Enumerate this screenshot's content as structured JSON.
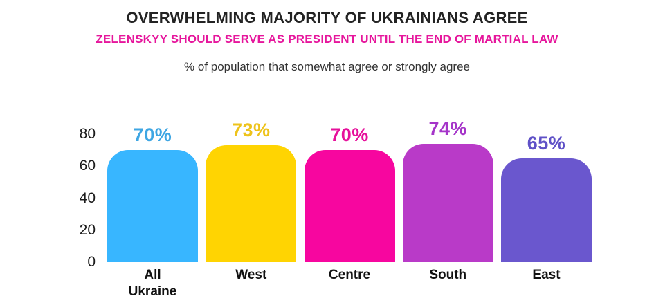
{
  "header": {
    "title": "OVERWHELMING MAJORITY OF UKRAINIANS AGREE",
    "subtitle": "ZELENSKYY SHOULD SERVE AS PRESIDENT UNTIL THE END OF MARTIAL LAW",
    "caption": "% of population that somewhat agree or strongly agree"
  },
  "colors": {
    "title_text": "#232323",
    "subtitle_text": "#E6169C",
    "caption_text": "#333333",
    "axis_text": "#1B1B1B",
    "background": "#FFFFFF"
  },
  "chart_data": {
    "type": "bar",
    "title": "OVERWHELMING MAJORITY OF UKRAINIANS AGREE",
    "subtitle": "ZELENSKYY SHOULD SERVE AS PRESIDENT UNTIL THE END OF MARTIAL LAW",
    "note": "% of population that somewhat agree or strongly agree",
    "categories": [
      "All Ukraine",
      "West",
      "Centre",
      "South",
      "East"
    ],
    "tick_labels": [
      "All\nUkraine",
      "West",
      "Centre",
      "South",
      "East"
    ],
    "values": [
      70,
      73,
      70,
      74,
      65
    ],
    "value_labels": [
      "70%",
      "73%",
      "70%",
      "74%",
      "65%"
    ],
    "bar_colors": [
      "#38B6FF",
      "#FFD402",
      "#F7069F",
      "#B93AC8",
      "#6A57CE"
    ],
    "value_label_colors": [
      "#3EA6E3",
      "#EEC31B",
      "#E6109B",
      "#A535C9",
      "#5F51C7"
    ],
    "xlabel": "",
    "ylabel": "",
    "yticks": [
      0,
      20,
      40,
      60,
      80
    ],
    "ylim": [
      0,
      80
    ],
    "grid": false,
    "legend": false
  }
}
